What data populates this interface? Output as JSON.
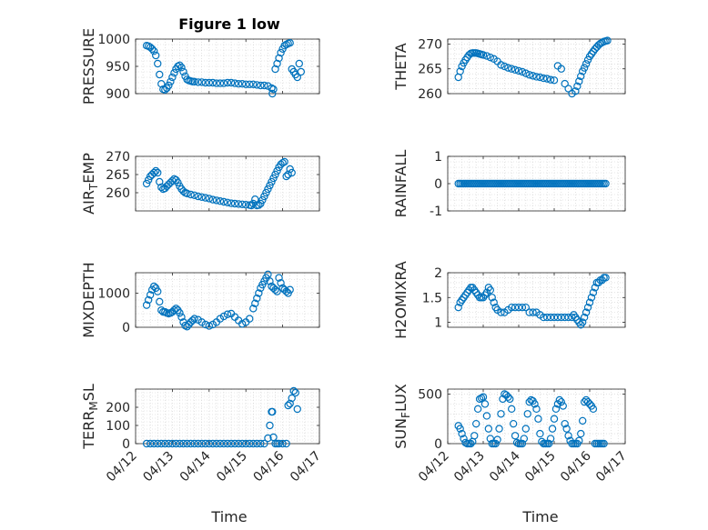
{
  "figure": {
    "title": "Figure 1 low",
    "xlabel": "Time",
    "marker_color": "#0072BD"
  },
  "chart_data": [
    {
      "type": "scatter",
      "title": "Figure 1 low",
      "ylabel": "PRESSURE",
      "ylabel_sub": "",
      "ylabel_suffix": "",
      "ylim": [
        900,
        1000
      ],
      "yticks": [
        900,
        950,
        1000
      ],
      "xlim": [
        0,
        5
      ],
      "xticks": [
        0,
        1,
        2,
        3,
        4,
        5
      ],
      "xtick_labels": [],
      "x": [
        0.3,
        0.35,
        0.4,
        0.45,
        0.5,
        0.55,
        0.6,
        0.65,
        0.7,
        0.75,
        0.8,
        0.85,
        0.9,
        0.95,
        1.0,
        1.05,
        1.1,
        1.15,
        1.2,
        1.25,
        1.3,
        1.35,
        1.4,
        1.45,
        1.5,
        1.55,
        1.6,
        1.7,
        1.8,
        1.9,
        2.0,
        2.1,
        2.2,
        2.3,
        2.4,
        2.5,
        2.6,
        2.7,
        2.8,
        2.9,
        3.0,
        3.1,
        3.2,
        3.3,
        3.4,
        3.5,
        3.6,
        3.7,
        3.72,
        3.75,
        3.8,
        3.85,
        3.9,
        3.95,
        4.0,
        4.05,
        4.1,
        4.15,
        4.2,
        4.25,
        4.3,
        4.35,
        4.4,
        4.45,
        4.5
      ],
      "y": [
        988,
        987,
        985,
        982,
        978,
        970,
        955,
        935,
        918,
        908,
        907,
        910,
        915,
        922,
        930,
        938,
        945,
        950,
        952,
        948,
        940,
        932,
        926,
        924,
        923,
        922,
        922,
        921,
        921,
        920,
        920,
        920,
        919,
        919,
        919,
        920,
        920,
        919,
        918,
        918,
        917,
        917,
        917,
        916,
        915,
        915,
        914,
        910,
        900,
        908,
        945,
        955,
        965,
        975,
        982,
        988,
        990,
        992,
        993,
        945,
        940,
        935,
        930,
        955,
        940
      ]
    },
    {
      "type": "scatter",
      "ylabel": "THETA",
      "ylabel_sub": "",
      "ylabel_suffix": "",
      "ylim": [
        260,
        271
      ],
      "yticks": [
        260,
        265,
        270
      ],
      "xlim": [
        0,
        5
      ],
      "xticks": [
        0,
        1,
        2,
        3,
        4,
        5
      ],
      "xtick_labels": [],
      "x": [
        0.3,
        0.35,
        0.4,
        0.45,
        0.5,
        0.55,
        0.6,
        0.65,
        0.7,
        0.75,
        0.8,
        0.85,
        0.9,
        0.95,
        1.0,
        1.1,
        1.2,
        1.3,
        1.4,
        1.5,
        1.6,
        1.7,
        1.8,
        1.9,
        2.0,
        2.1,
        2.2,
        2.3,
        2.4,
        2.5,
        2.6,
        2.7,
        2.8,
        2.9,
        3.0,
        3.1,
        3.2,
        3.3,
        3.4,
        3.5,
        3.6,
        3.65,
        3.7,
        3.75,
        3.8,
        3.85,
        3.9,
        3.95,
        4.0,
        4.05,
        4.1,
        4.15,
        4.2,
        4.25,
        4.3,
        4.35,
        4.4,
        4.45,
        4.5
      ],
      "y": [
        263.3,
        264.5,
        265.5,
        266.2,
        266.8,
        267.3,
        267.8,
        268.1,
        268.2,
        268.2,
        268.2,
        268.1,
        268.0,
        267.9,
        267.8,
        267.6,
        267.3,
        267.0,
        266.5,
        265.8,
        265.5,
        265.2,
        265.0,
        264.8,
        264.6,
        264.4,
        264.1,
        263.8,
        263.6,
        263.4,
        263.3,
        263.1,
        263.0,
        262.8,
        262.7,
        265.6,
        265.0,
        262.0,
        261.0,
        260.0,
        260.5,
        261.5,
        262.5,
        263.5,
        264.5,
        265.2,
        266.0,
        266.8,
        267.5,
        268.0,
        268.5,
        269.0,
        269.4,
        269.8,
        270.1,
        270.3,
        270.5,
        270.6,
        270.7
      ]
    },
    {
      "type": "scatter",
      "ylabel": "AIR",
      "ylabel_sub": "T",
      "ylabel_suffix": "EMP",
      "ylim": [
        255,
        270
      ],
      "yticks": [
        260,
        265,
        270
      ],
      "xlim": [
        0,
        5
      ],
      "xticks": [
        0,
        1,
        2,
        3,
        4,
        5
      ],
      "xtick_labels": [],
      "x": [
        0.3,
        0.35,
        0.4,
        0.45,
        0.5,
        0.55,
        0.6,
        0.65,
        0.7,
        0.75,
        0.8,
        0.85,
        0.9,
        0.95,
        1.0,
        1.05,
        1.1,
        1.15,
        1.2,
        1.25,
        1.3,
        1.35,
        1.4,
        1.5,
        1.6,
        1.7,
        1.8,
        1.9,
        2.0,
        2.1,
        2.2,
        2.3,
        2.4,
        2.5,
        2.6,
        2.7,
        2.8,
        2.9,
        3.0,
        3.1,
        3.15,
        3.2,
        3.25,
        3.3,
        3.35,
        3.4,
        3.45,
        3.5,
        3.55,
        3.6,
        3.65,
        3.7,
        3.75,
        3.8,
        3.85,
        3.9,
        3.95,
        4.0,
        4.05,
        4.1,
        4.15,
        4.2,
        4.25
      ],
      "y": [
        262.5,
        263.5,
        264.5,
        265.0,
        265.5,
        266.0,
        265.5,
        263.0,
        261.5,
        261.0,
        261.2,
        261.8,
        262.3,
        262.8,
        263.3,
        263.8,
        263.5,
        262.8,
        261.8,
        261.0,
        260.4,
        260.0,
        259.8,
        259.5,
        259.3,
        259.0,
        258.8,
        258.6,
        258.4,
        258.1,
        257.9,
        257.7,
        257.5,
        257.3,
        257.1,
        257.0,
        256.9,
        256.8,
        256.7,
        256.6,
        256.5,
        257.0,
        258.2,
        256.5,
        256.6,
        257.0,
        258.0,
        259.0,
        260.0,
        261.0,
        262.0,
        263.0,
        264.0,
        265.0,
        266.0,
        267.0,
        267.8,
        268.2,
        268.5,
        264.5,
        265.0,
        266.5,
        265.5
      ]
    },
    {
      "type": "scatter",
      "ylabel": "RAINFALL",
      "ylabel_sub": "",
      "ylabel_suffix": "",
      "ylim": [
        -1,
        1
      ],
      "yticks": [
        -1,
        0,
        1
      ],
      "xlim": [
        0,
        5
      ],
      "xticks": [
        0,
        1,
        2,
        3,
        4,
        5
      ],
      "xtick_labels": [],
      "x_start": 0.3,
      "x_end": 4.45,
      "x_step": 0.05,
      "constant_y": 0
    },
    {
      "type": "scatter",
      "ylabel": "MIXDEPTH",
      "ylabel_sub": "",
      "ylabel_suffix": "",
      "ylim": [
        0,
        1600
      ],
      "yticks": [
        0,
        1000
      ],
      "xlim": [
        0,
        5
      ],
      "xticks": [
        0,
        1,
        2,
        3,
        4,
        5
      ],
      "xtick_labels": [],
      "x": [
        0.3,
        0.35,
        0.4,
        0.45,
        0.5,
        0.55,
        0.6,
        0.65,
        0.7,
        0.75,
        0.8,
        0.85,
        0.9,
        0.95,
        1.0,
        1.05,
        1.1,
        1.15,
        1.2,
        1.25,
        1.3,
        1.35,
        1.4,
        1.45,
        1.5,
        1.55,
        1.6,
        1.7,
        1.8,
        1.9,
        2.0,
        2.1,
        2.2,
        2.3,
        2.4,
        2.5,
        2.6,
        2.7,
        2.8,
        2.9,
        3.0,
        3.1,
        3.2,
        3.25,
        3.3,
        3.35,
        3.4,
        3.45,
        3.5,
        3.55,
        3.6,
        3.65,
        3.7,
        3.75,
        3.8,
        3.85,
        3.9,
        3.95,
        4.0,
        4.05,
        4.1,
        4.15,
        4.2
      ],
      "y": [
        650,
        800,
        950,
        1100,
        1200,
        1150,
        1050,
        750,
        500,
        450,
        450,
        420,
        400,
        420,
        450,
        500,
        550,
        500,
        420,
        300,
        150,
        50,
        20,
        80,
        150,
        200,
        250,
        220,
        150,
        80,
        40,
        80,
        150,
        250,
        320,
        380,
        400,
        300,
        200,
        100,
        150,
        250,
        550,
        700,
        850,
        1000,
        1150,
        1250,
        1350,
        1450,
        1550,
        1350,
        1200,
        1150,
        1100,
        1050,
        1450,
        1300,
        1150,
        1100,
        1050,
        1000,
        1100
      ]
    },
    {
      "type": "scatter",
      "ylabel": "H2OMIXRA",
      "ylabel_sub": "",
      "ylabel_suffix": "",
      "ylim": [
        0.9,
        2.0
      ],
      "yticks": [
        1,
        1.5,
        2
      ],
      "xlim": [
        0,
        5
      ],
      "xticks": [
        0,
        1,
        2,
        3,
        4,
        5
      ],
      "xtick_labels": [],
      "x": [
        0.3,
        0.35,
        0.4,
        0.45,
        0.5,
        0.55,
        0.6,
        0.65,
        0.7,
        0.75,
        0.8,
        0.85,
        0.9,
        0.95,
        1.0,
        1.05,
        1.1,
        1.15,
        1.2,
        1.25,
        1.3,
        1.35,
        1.4,
        1.5,
        1.6,
        1.7,
        1.8,
        1.9,
        2.0,
        2.1,
        2.2,
        2.3,
        2.4,
        2.5,
        2.6,
        2.7,
        2.8,
        2.9,
        3.0,
        3.1,
        3.2,
        3.3,
        3.4,
        3.5,
        3.55,
        3.6,
        3.65,
        3.7,
        3.75,
        3.8,
        3.85,
        3.9,
        3.95,
        4.0,
        4.05,
        4.1,
        4.15,
        4.2,
        4.25,
        4.3,
        4.35,
        4.4,
        4.45
      ],
      "y": [
        1.3,
        1.4,
        1.45,
        1.5,
        1.55,
        1.6,
        1.65,
        1.7,
        1.7,
        1.65,
        1.6,
        1.55,
        1.5,
        1.5,
        1.5,
        1.55,
        1.6,
        1.7,
        1.65,
        1.5,
        1.4,
        1.3,
        1.25,
        1.2,
        1.2,
        1.25,
        1.3,
        1.3,
        1.3,
        1.3,
        1.3,
        1.2,
        1.2,
        1.2,
        1.15,
        1.1,
        1.1,
        1.1,
        1.1,
        1.1,
        1.1,
        1.1,
        1.1,
        1.1,
        1.15,
        1.1,
        1.05,
        1.0,
        0.95,
        1.0,
        1.1,
        1.2,
        1.3,
        1.4,
        1.5,
        1.6,
        1.7,
        1.8,
        1.8,
        1.85,
        1.85,
        1.9,
        1.9
      ]
    },
    {
      "type": "scatter",
      "ylabel": "TERR",
      "ylabel_sub": "M",
      "ylabel_suffix": "SL",
      "ylim": [
        0,
        300
      ],
      "yticks": [
        0,
        100,
        200
      ],
      "xlim": [
        0,
        5
      ],
      "xticks": [
        0,
        1,
        2,
        3,
        4,
        5
      ],
      "xtick_labels": [
        "04/12",
        "04/13",
        "04/14",
        "04/15",
        "04/16",
        "04/17"
      ],
      "x": [
        0.3,
        0.4,
        0.5,
        0.6,
        0.7,
        0.8,
        0.9,
        1.0,
        1.1,
        1.2,
        1.3,
        1.4,
        1.5,
        1.6,
        1.7,
        1.8,
        1.9,
        2.0,
        2.1,
        2.2,
        2.3,
        2.4,
        2.5,
        2.6,
        2.7,
        2.8,
        2.9,
        3.0,
        3.1,
        3.2,
        3.3,
        3.4,
        3.5,
        3.6,
        3.65,
        3.7,
        3.72,
        3.75,
        3.8,
        3.85,
        3.9,
        4.0,
        4.1,
        4.15,
        4.2,
        4.25,
        4.3,
        4.35,
        4.4
      ],
      "y": [
        0,
        0,
        0,
        0,
        0,
        0,
        0,
        0,
        0,
        0,
        0,
        0,
        0,
        0,
        0,
        0,
        0,
        0,
        0,
        0,
        0,
        0,
        0,
        0,
        0,
        0,
        0,
        0,
        0,
        0,
        0,
        0,
        0,
        30,
        100,
        175,
        175,
        35,
        0,
        0,
        0,
        0,
        0,
        210,
        220,
        250,
        290,
        280,
        190
      ]
    },
    {
      "type": "scatter",
      "ylabel": "SUN",
      "ylabel_sub": "F",
      "ylabel_suffix": "LUX",
      "ylim": [
        0,
        550
      ],
      "yticks": [
        0,
        500
      ],
      "xlim": [
        0,
        5
      ],
      "xticks": [
        0,
        1,
        2,
        3,
        4,
        5
      ],
      "xtick_labels": [
        "04/12",
        "04/13",
        "04/14",
        "04/15",
        "04/16",
        "04/17"
      ],
      "x": [
        0.3,
        0.35,
        0.4,
        0.45,
        0.5,
        0.55,
        0.6,
        0.65,
        0.7,
        0.75,
        0.8,
        0.85,
        0.9,
        0.95,
        1.0,
        1.05,
        1.1,
        1.15,
        1.2,
        1.25,
        1.3,
        1.35,
        1.4,
        1.45,
        1.5,
        1.55,
        1.6,
        1.65,
        1.7,
        1.75,
        1.8,
        1.85,
        1.9,
        1.95,
        2.0,
        2.05,
        2.1,
        2.15,
        2.2,
        2.25,
        2.3,
        2.35,
        2.4,
        2.45,
        2.5,
        2.55,
        2.6,
        2.65,
        2.7,
        2.75,
        2.8,
        2.85,
        2.9,
        2.95,
        3.0,
        3.05,
        3.1,
        3.15,
        3.2,
        3.25,
        3.3,
        3.35,
        3.4,
        3.45,
        3.5,
        3.55,
        3.6,
        3.65,
        3.7,
        3.75,
        3.8,
        3.85,
        3.9,
        3.95,
        4.0,
        4.05,
        4.1,
        4.15,
        4.2,
        4.25,
        4.3,
        4.35,
        4.4
      ],
      "y": [
        180,
        150,
        100,
        50,
        10,
        0,
        0,
        0,
        20,
        80,
        200,
        350,
        450,
        460,
        470,
        400,
        280,
        150,
        50,
        0,
        0,
        0,
        40,
        150,
        300,
        450,
        500,
        490,
        470,
        450,
        350,
        200,
        80,
        10,
        0,
        0,
        0,
        50,
        150,
        300,
        420,
        440,
        430,
        400,
        350,
        250,
        100,
        20,
        0,
        0,
        0,
        0,
        50,
        150,
        250,
        350,
        400,
        440,
        420,
        380,
        200,
        150,
        80,
        30,
        0,
        0,
        0,
        0,
        30,
        100,
        230,
        420,
        440,
        420,
        400,
        380,
        350,
        0,
        0,
        0,
        0,
        0,
        0
      ]
    }
  ]
}
